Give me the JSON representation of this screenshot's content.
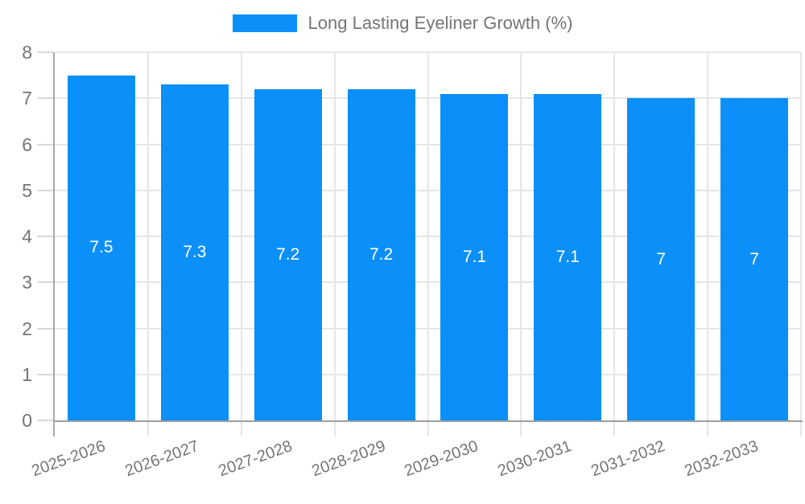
{
  "chart_data": {
    "type": "bar",
    "series_name": "Long Lasting Eyeliner Growth (%)",
    "categories": [
      "2025-2026",
      "2026-2027",
      "2027-2028",
      "2028-2029",
      "2029-2030",
      "2030-2031",
      "2031-2032",
      "2032-2033"
    ],
    "values": [
      7.5,
      7.3,
      7.2,
      7.2,
      7.1,
      7.1,
      7,
      7
    ],
    "value_labels": [
      "7.5",
      "7.3",
      "7.2",
      "7.2",
      "7.1",
      "7.1",
      "7",
      "7"
    ],
    "ylim": [
      0,
      8
    ],
    "ytick_labels": [
      "0",
      "1",
      "2",
      "3",
      "4",
      "5",
      "6",
      "7",
      "8"
    ],
    "ytick_step": 1,
    "grid": true,
    "legend_position": "top",
    "colors": {
      "bar": "#0b8ff9",
      "bar_label": "#ffffff",
      "axis_text": "#757575",
      "gridline": "#e6e6e6",
      "axis_line": "#9e9e9e"
    }
  }
}
